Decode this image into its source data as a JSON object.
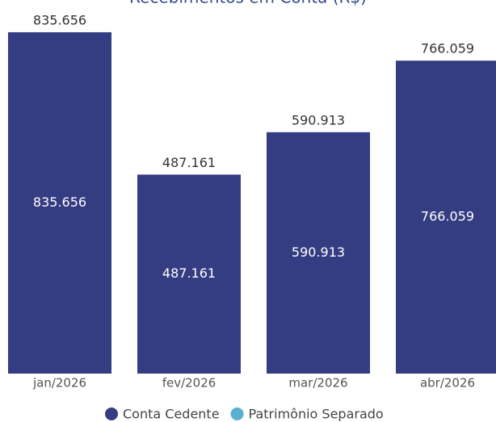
{
  "chart_data": {
    "type": "stacked-bar",
    "title": "Recebimentos em Conta (R$)",
    "categories": [
      "jan/2026",
      "fev/2026",
      "mar/2026",
      "abr/2026"
    ],
    "series": [
      {
        "name": "Conta Cedente",
        "color": "#343c82",
        "values": [
          835656,
          487161,
          590913,
          766059
        ],
        "value_labels": [
          "835.656",
          "487.161",
          "590.913",
          "766.059"
        ]
      },
      {
        "name": "Patrimônio Separado",
        "color": "#5aafd3",
        "values": [
          0,
          0,
          0,
          0
        ]
      }
    ],
    "ylim": [
      0,
      850000
    ],
    "legend": "bottom"
  }
}
